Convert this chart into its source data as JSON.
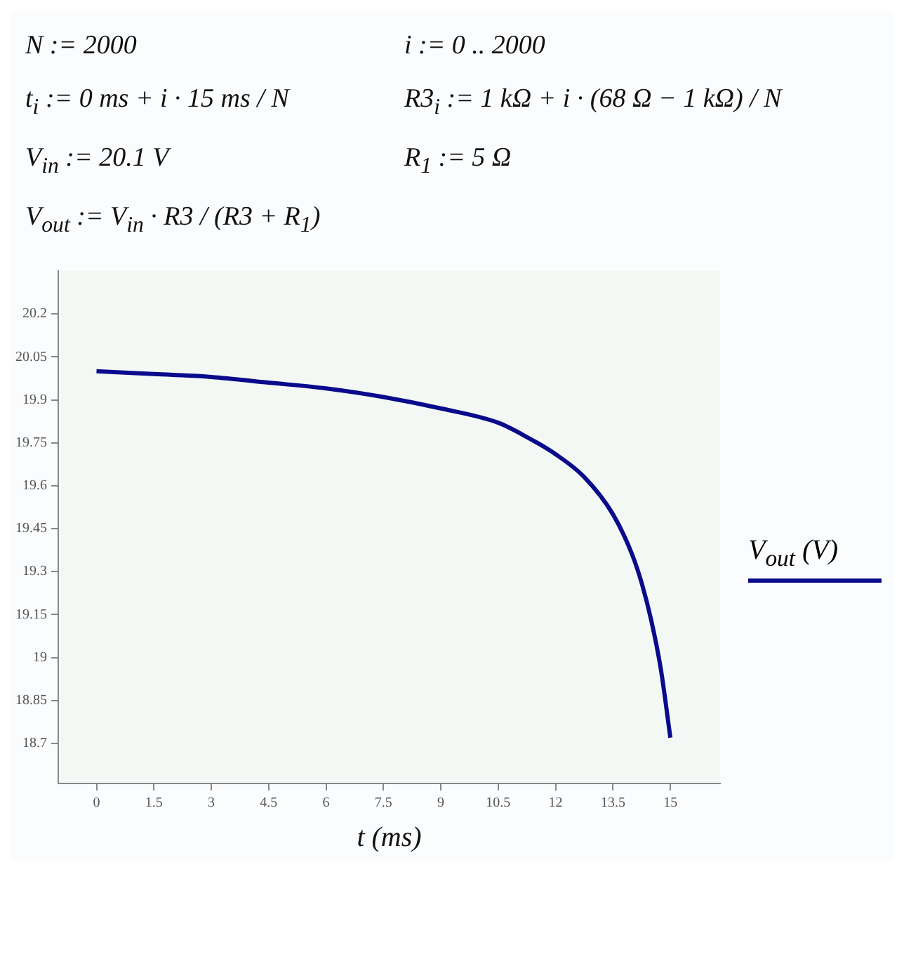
{
  "chart_data": {
    "type": "line",
    "xlabel": "t (ms)",
    "legend": "right",
    "marker": "none",
    "line_style": "solid",
    "grid": false,
    "annotations": [
      "N := 2000",
      "i := 0 .. 2000",
      "t$_{i}$ := 0 ms + i · 15 ms / N",
      "R3$_{i}$ := 1 kΩ + i · (68 Ω − 1 kΩ) / N",
      "V$_{in}$ := 20.1 V",
      "R$_{1}$ := 5 Ω",
      "V$_{out}$ := V$_{in}$ · R3 / (R3 + R$_{1}$)"
    ],
    "x": [
      0,
      1.5,
      3,
      4.5,
      6,
      7.5,
      9,
      10.5,
      11.25,
      12,
      12.75,
      13.5,
      14,
      14.25,
      14.5,
      14.75,
      15
    ],
    "series": [
      {
        "name": "V$_{out}$ (V)",
        "color": "#0a0a8c",
        "values": [
          20.0,
          19.99,
          19.98,
          19.96,
          19.94,
          19.91,
          19.87,
          19.82,
          19.77,
          19.71,
          19.63,
          19.5,
          19.36,
          19.26,
          19.13,
          18.96,
          18.72
        ]
      }
    ],
    "xlim": [
      -1,
      16.3
    ],
    "xticks": [
      0,
      1.5,
      3,
      4.5,
      6,
      7.5,
      9,
      10.5,
      12,
      13.5,
      15
    ],
    "ylim": [
      18.56,
      20.35
    ],
    "yticks": [
      18.7,
      18.85,
      19,
      19.15,
      19.3,
      19.45,
      19.6,
      19.75,
      19.9,
      20.05,
      20.2
    ]
  }
}
